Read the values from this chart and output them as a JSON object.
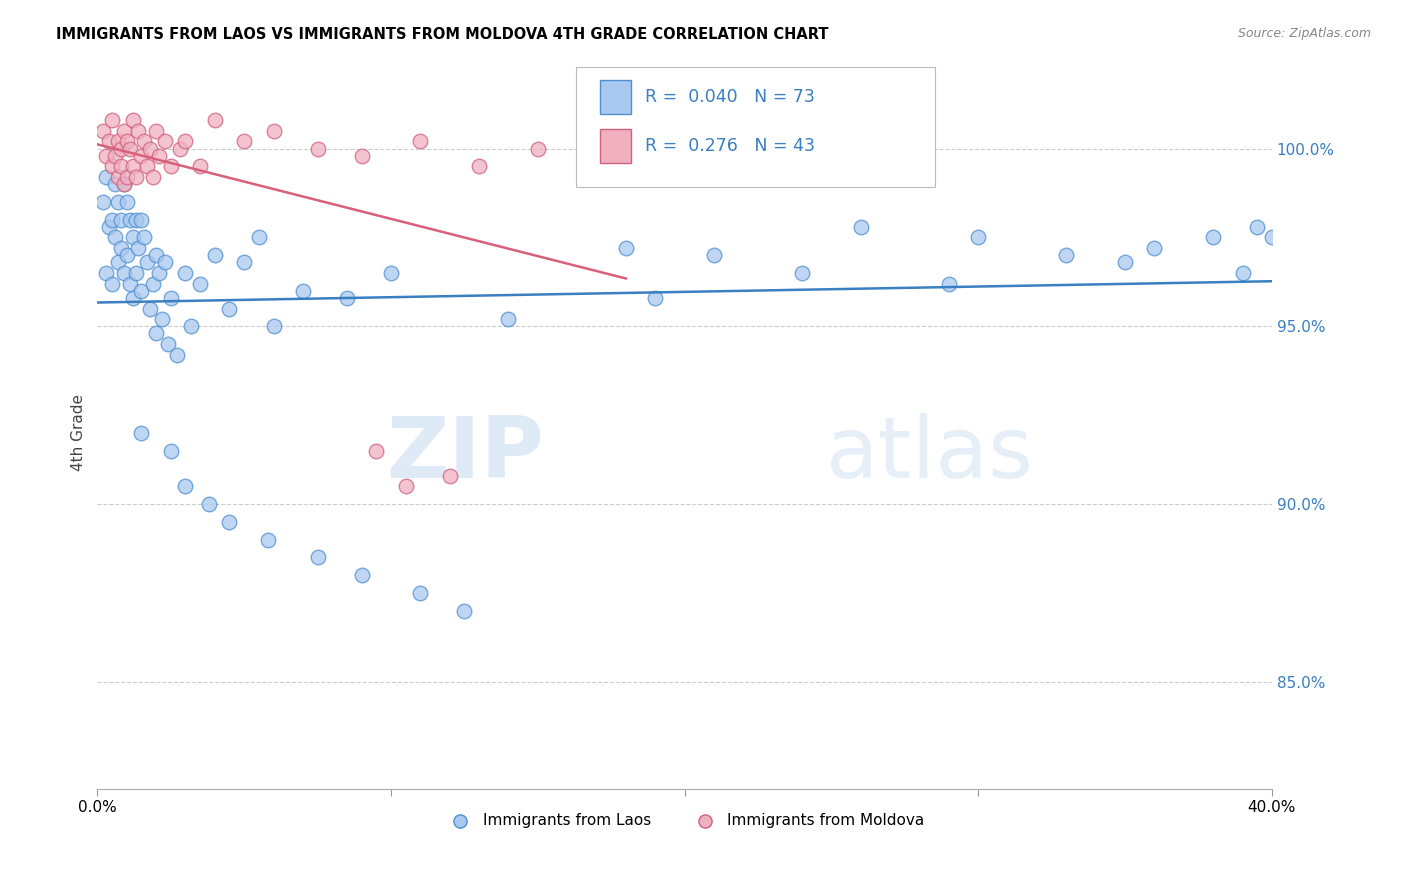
{
  "title": "IMMIGRANTS FROM LAOS VS IMMIGRANTS FROM MOLDOVA 4TH GRADE CORRELATION CHART",
  "source": "Source: ZipAtlas.com",
  "ylabel": "4th Grade",
  "xlim": [
    0.0,
    40.0
  ],
  "ylim": [
    82.0,
    102.0
  ],
  "yticks": [
    85.0,
    90.0,
    95.0,
    100.0
  ],
  "ytick_labels": [
    "85.0%",
    "90.0%",
    "95.0%",
    "100.0%"
  ],
  "legend_laos": "Immigrants from Laos",
  "legend_moldova": "Immigrants from Moldova",
  "R_laos": "0.040",
  "N_laos": "73",
  "R_moldova": "0.276",
  "N_moldova": "43",
  "color_laos_fill": "#a8c8f0",
  "color_laos_edge": "#5090d0",
  "color_moldova_fill": "#f0b0c0",
  "color_moldova_edge": "#d06080",
  "color_laos_line": "#3a7fc1",
  "color_moldova_line": "#d9607a",
  "watermark_zip": "ZIP",
  "watermark_atlas": "atlas",
  "laos_x": [
    0.2,
    0.3,
    0.3,
    0.4,
    0.5,
    0.5,
    0.6,
    0.6,
    0.7,
    0.7,
    0.8,
    0.8,
    0.9,
    0.9,
    1.0,
    1.0,
    1.1,
    1.1,
    1.2,
    1.2,
    1.3,
    1.3,
    1.4,
    1.5,
    1.5,
    1.6,
    1.7,
    1.8,
    1.9,
    2.0,
    2.0,
    2.1,
    2.2,
    2.3,
    2.4,
    2.5,
    2.7,
    3.0,
    3.2,
    3.5,
    4.0,
    4.5,
    5.0,
    5.5,
    6.0,
    7.0,
    8.5,
    10.0,
    14.0,
    18.0,
    19.0,
    21.0,
    24.0,
    26.0,
    29.0,
    30.0,
    33.0,
    35.0,
    36.0,
    38.0,
    39.0,
    39.5,
    40.0,
    1.5,
    2.5,
    3.0,
    3.8,
    4.5,
    5.8,
    7.5,
    9.0,
    11.0,
    12.5
  ],
  "laos_y": [
    98.5,
    96.5,
    99.2,
    97.8,
    98.0,
    96.2,
    99.0,
    97.5,
    98.5,
    96.8,
    98.0,
    97.2,
    99.0,
    96.5,
    98.5,
    97.0,
    98.0,
    96.2,
    97.5,
    95.8,
    98.0,
    96.5,
    97.2,
    98.0,
    96.0,
    97.5,
    96.8,
    95.5,
    96.2,
    97.0,
    94.8,
    96.5,
    95.2,
    96.8,
    94.5,
    95.8,
    94.2,
    96.5,
    95.0,
    96.2,
    97.0,
    95.5,
    96.8,
    97.5,
    95.0,
    96.0,
    95.8,
    96.5,
    95.2,
    97.2,
    95.8,
    97.0,
    96.5,
    97.8,
    96.2,
    97.5,
    97.0,
    96.8,
    97.2,
    97.5,
    96.5,
    97.8,
    97.5,
    92.0,
    91.5,
    90.5,
    90.0,
    89.5,
    89.0,
    88.5,
    88.0,
    87.5,
    87.0
  ],
  "moldova_x": [
    0.2,
    0.3,
    0.4,
    0.5,
    0.5,
    0.6,
    0.7,
    0.7,
    0.8,
    0.8,
    0.9,
    0.9,
    1.0,
    1.0,
    1.1,
    1.2,
    1.2,
    1.3,
    1.4,
    1.5,
    1.6,
    1.7,
    1.8,
    1.9,
    2.0,
    2.1,
    2.3,
    2.5,
    2.8,
    3.0,
    3.5,
    4.0,
    5.0,
    6.0,
    7.5,
    9.0,
    11.0,
    13.0,
    15.0,
    17.5,
    9.5,
    10.5,
    12.0
  ],
  "moldova_y": [
    100.5,
    99.8,
    100.2,
    99.5,
    100.8,
    99.8,
    100.2,
    99.2,
    100.0,
    99.5,
    100.5,
    99.0,
    100.2,
    99.2,
    100.0,
    99.5,
    100.8,
    99.2,
    100.5,
    99.8,
    100.2,
    99.5,
    100.0,
    99.2,
    100.5,
    99.8,
    100.2,
    99.5,
    100.0,
    100.2,
    99.5,
    100.8,
    100.2,
    100.5,
    100.0,
    99.8,
    100.2,
    99.5,
    100.0,
    100.5,
    91.5,
    90.5,
    90.8
  ]
}
